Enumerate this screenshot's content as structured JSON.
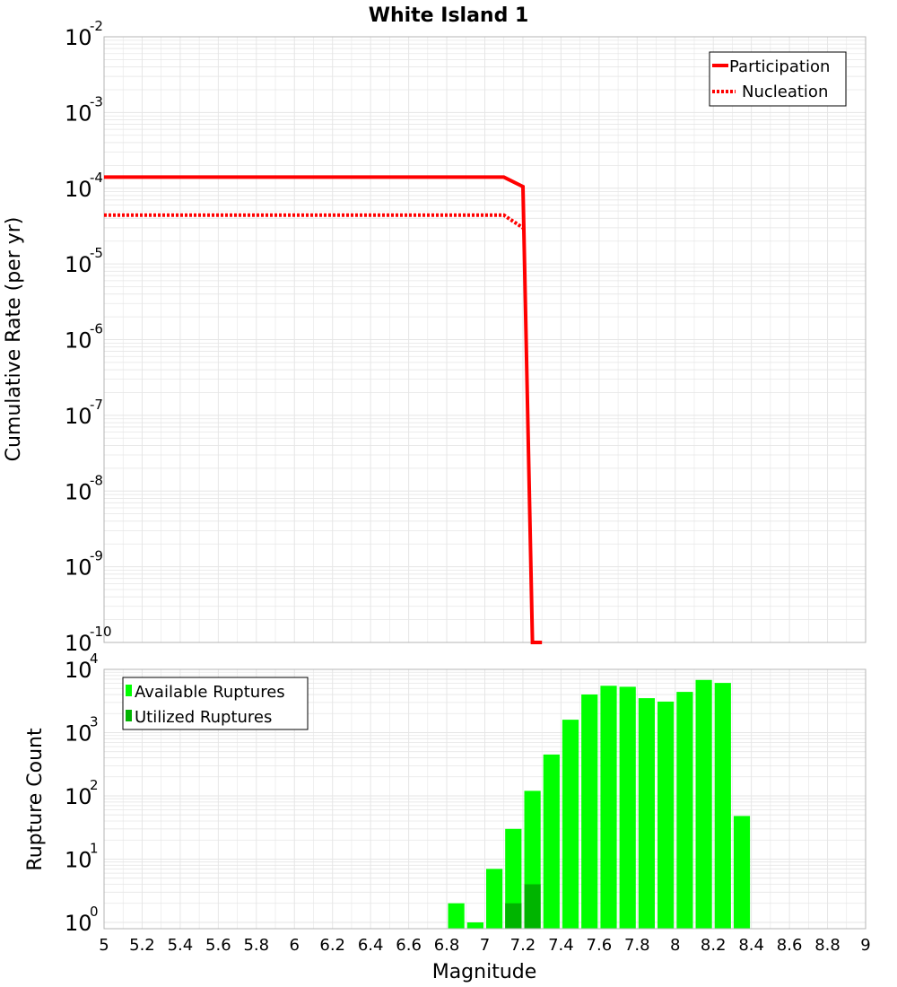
{
  "colors": {
    "participation": "#ff0000",
    "nucleation": "#ff0000",
    "available": "#00ff00",
    "utilized": "#00b400",
    "grid": "#e6e6e6",
    "frame": "#b4b4b4"
  },
  "chart_data": [
    {
      "type": "line",
      "title": "White Island 1",
      "xlabel": "Magnitude",
      "ylabel": "Cumulative Rate (per yr)",
      "yscale": "log",
      "xlim": [
        5,
        9
      ],
      "ylim_exp": [
        -10,
        -2
      ],
      "y_tick_base": "10",
      "y_tick_exponents": [
        "-10",
        "-9",
        "-8",
        "-7",
        "-6",
        "-5",
        "-4",
        "-3",
        "-2"
      ],
      "legend": {
        "position": "top-right",
        "entries": [
          "Participation",
          "Nucleation"
        ]
      },
      "series": [
        {
          "name": "Participation",
          "style": "solid",
          "x": [
            5.0,
            7.1,
            7.2,
            7.25,
            7.3
          ],
          "y": [
            0.00014,
            0.00014,
            0.000105,
            1e-10,
            1e-10
          ]
        },
        {
          "name": "Nucleation",
          "style": "dotted",
          "x": [
            5.0,
            7.1,
            7.2
          ],
          "y": [
            4.4e-05,
            4.4e-05,
            3e-05
          ]
        }
      ]
    },
    {
      "type": "bar",
      "xlabel": "Magnitude",
      "ylabel": "Rupture Count",
      "yscale": "log",
      "xlim": [
        5,
        9
      ],
      "ylim_exp": [
        -0.1,
        4
      ],
      "y_tick_base": "10",
      "y_tick_exponents": [
        "0",
        "1",
        "2",
        "3",
        "4"
      ],
      "x_ticks": [
        "5",
        "5.2",
        "5.4",
        "5.6",
        "5.8",
        "6",
        "6.2",
        "6.4",
        "6.6",
        "6.8",
        "7",
        "7.2",
        "7.4",
        "7.6",
        "7.8",
        "8",
        "8.2",
        "8.4",
        "8.6",
        "8.8",
        "9"
      ],
      "legend": {
        "position": "top-left",
        "entries": [
          "Available Ruptures",
          "Utilized Ruptures"
        ]
      },
      "bin_width": 0.1,
      "series": [
        {
          "name": "Available Ruptures",
          "x": [
            6.85,
            6.95,
            7.05,
            7.15,
            7.25,
            7.35,
            7.45,
            7.55,
            7.65,
            7.75,
            7.85,
            7.95,
            8.05,
            8.15,
            8.25,
            8.35
          ],
          "values": [
            2,
            1,
            7,
            30,
            120,
            450,
            1600,
            4000,
            5500,
            5300,
            3500,
            3100,
            4400,
            6800,
            6100,
            48
          ]
        },
        {
          "name": "Utilized Ruptures",
          "x": [
            7.15,
            7.25
          ],
          "values": [
            2,
            4
          ]
        }
      ]
    }
  ]
}
